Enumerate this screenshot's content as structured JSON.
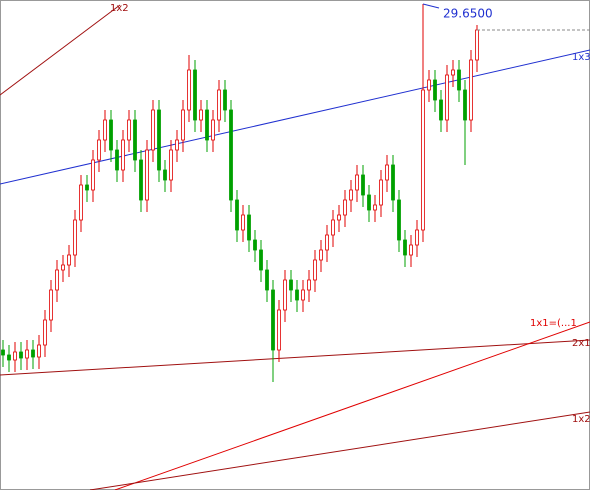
{
  "chart_data": {
    "type": "candlestick",
    "ylim": [
      24.79,
      29.69
    ],
    "up_color": "#e00000",
    "down_color": "#00a000",
    "open": [
      26.19,
      26.14,
      26.09,
      26.17,
      26.11,
      26.19,
      26.12,
      26.24,
      26.49,
      26.79,
      26.99,
      27.04,
      27.14,
      27.49,
      27.84,
      27.79,
      28.09,
      28.29,
      28.49,
      28.19,
      27.99,
      28.29,
      28.49,
      28.09,
      27.69,
      28.19,
      28.59,
      27.99,
      27.89,
      28.19,
      28.29,
      28.59,
      28.99,
      28.49,
      28.59,
      28.29,
      28.49,
      28.79,
      28.59,
      27.69,
      27.39,
      27.54,
      27.29,
      27.19,
      26.99,
      26.79,
      26.19,
      26.59,
      26.89,
      26.79,
      26.69,
      26.79,
      26.89,
      27.09,
      27.19,
      27.34,
      27.49,
      27.54,
      27.69,
      27.79,
      27.94,
      27.74,
      27.59,
      27.64,
      27.89,
      28.04,
      27.69,
      27.29,
      27.14,
      27.24,
      27.39,
      28.79,
      28.89,
      28.69,
      28.49,
      28.94,
      28.99,
      28.79,
      28.49,
      29.09
    ],
    "high": [
      26.29,
      26.24,
      26.27,
      26.27,
      26.29,
      26.29,
      26.34,
      26.59,
      26.89,
      27.09,
      27.14,
      27.24,
      27.59,
      27.94,
      27.94,
      28.19,
      28.39,
      28.59,
      28.59,
      28.29,
      28.39,
      28.59,
      28.59,
      28.19,
      28.29,
      28.69,
      28.69,
      28.09,
      28.29,
      28.39,
      28.69,
      29.14,
      29.09,
      28.69,
      28.69,
      28.59,
      28.89,
      28.89,
      28.69,
      27.79,
      27.64,
      27.64,
      27.39,
      27.29,
      27.09,
      26.89,
      26.69,
      26.99,
      26.99,
      26.89,
      26.89,
      26.99,
      27.19,
      27.29,
      27.44,
      27.59,
      27.64,
      27.79,
      27.89,
      28.04,
      28.04,
      27.84,
      27.74,
      27.99,
      28.14,
      28.14,
      27.79,
      27.39,
      27.34,
      27.49,
      29.65,
      28.99,
      28.99,
      28.79,
      29.04,
      29.09,
      29.09,
      28.89,
      29.19,
      29.44
    ],
    "low": [
      26.02,
      25.97,
      25.97,
      25.99,
      25.99,
      26.0,
      26.0,
      26.12,
      26.37,
      26.67,
      26.87,
      26.92,
      27.02,
      27.37,
      27.67,
      27.67,
      27.97,
      28.17,
      28.07,
      27.87,
      27.87,
      28.17,
      27.97,
      27.57,
      27.57,
      28.07,
      27.87,
      27.77,
      27.77,
      28.07,
      28.17,
      28.47,
      28.37,
      28.37,
      28.17,
      28.17,
      28.37,
      28.47,
      27.57,
      27.27,
      27.27,
      27.17,
      27.07,
      26.87,
      26.67,
      25.87,
      26.07,
      26.47,
      26.67,
      26.57,
      26.57,
      26.67,
      26.77,
      26.97,
      27.07,
      27.22,
      27.37,
      27.42,
      27.57,
      27.67,
      27.62,
      27.47,
      27.47,
      27.52,
      27.77,
      27.57,
      27.17,
      27.02,
      27.02,
      27.12,
      27.27,
      28.67,
      28.57,
      28.37,
      28.37,
      28.82,
      28.67,
      28.04,
      28.37,
      28.97
    ],
    "close": [
      26.14,
      26.09,
      26.17,
      26.11,
      26.19,
      26.12,
      26.24,
      26.49,
      26.79,
      26.99,
      27.04,
      27.14,
      27.49,
      27.84,
      27.79,
      28.09,
      28.29,
      28.49,
      28.19,
      27.99,
      28.29,
      28.49,
      28.09,
      27.69,
      28.19,
      28.59,
      27.99,
      27.89,
      28.19,
      28.29,
      28.59,
      28.99,
      28.49,
      28.59,
      28.29,
      28.49,
      28.79,
      28.59,
      27.69,
      27.39,
      27.54,
      27.29,
      27.19,
      26.99,
      26.79,
      26.19,
      26.59,
      26.89,
      26.79,
      26.69,
      26.79,
      26.89,
      27.09,
      27.19,
      27.34,
      27.49,
      27.54,
      27.69,
      27.79,
      27.94,
      27.74,
      27.59,
      27.64,
      27.89,
      28.04,
      27.69,
      27.29,
      27.14,
      27.24,
      27.39,
      28.79,
      28.89,
      28.69,
      28.49,
      28.94,
      28.99,
      28.79,
      28.49,
      29.09,
      29.39
    ],
    "high_label": "29.6500",
    "annotations": [
      "1x2",
      "1x3",
      "1x1=(...1",
      "2x1",
      "1x2"
    ]
  }
}
